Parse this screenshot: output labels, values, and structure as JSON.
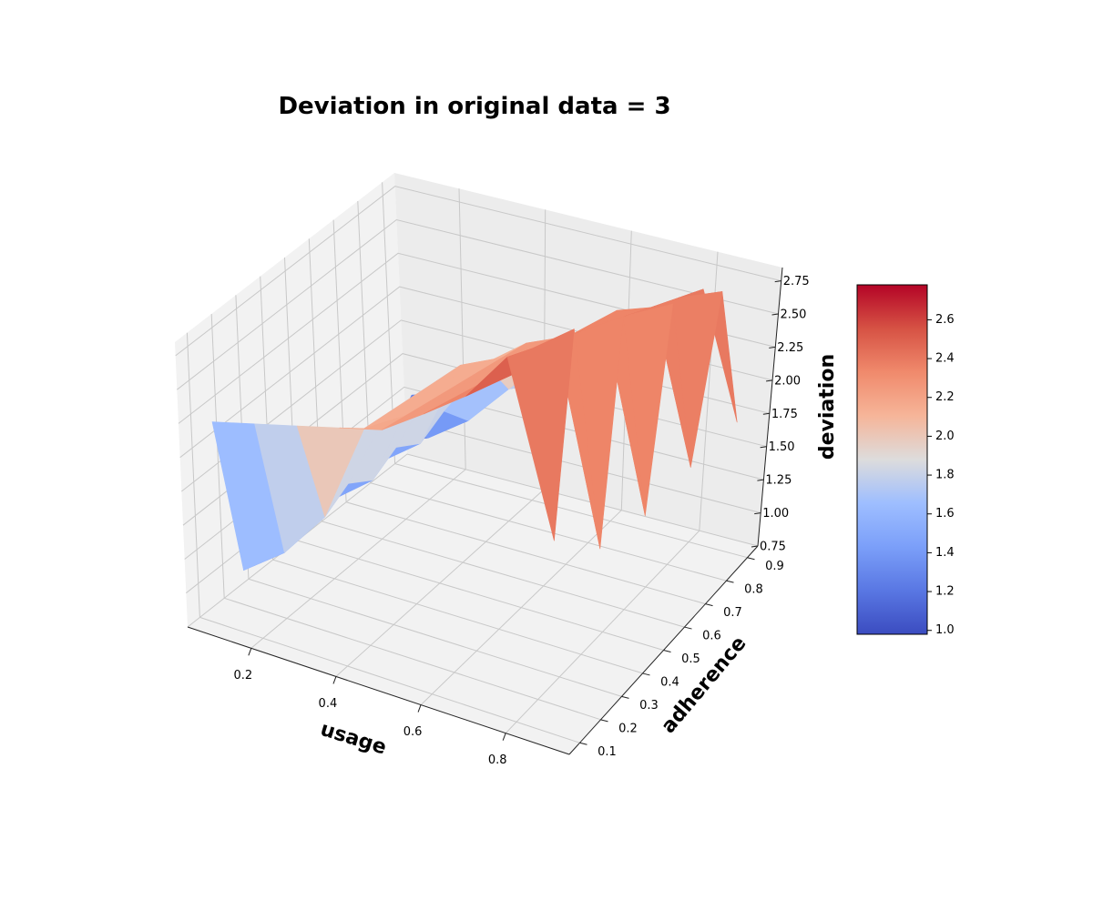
{
  "chart_data": {
    "type": "surface",
    "title": "Deviation in original data = 3",
    "xlabel": "usage",
    "ylabel": "adherence",
    "zlabel": "deviation",
    "xlim": [
      0.05,
      0.95
    ],
    "ylim": [
      0.05,
      0.95
    ],
    "zlim": [
      0.75,
      2.85
    ],
    "x_ticks": [
      "0.2",
      "0.4",
      "0.6",
      "0.8"
    ],
    "y_ticks": [
      "0.1",
      "0.2",
      "0.3",
      "0.4",
      "0.5",
      "0.6",
      "0.7",
      "0.8",
      "0.9"
    ],
    "z_ticks": [
      "0.75",
      "1.00",
      "1.25",
      "1.50",
      "1.75",
      "2.00",
      "2.25",
      "2.50",
      "2.75"
    ],
    "colormap": "coolwarm",
    "colorbar_range": [
      0.98,
      2.78
    ],
    "colorbar_ticks": [
      "1.0",
      "1.2",
      "1.4",
      "1.6",
      "1.8",
      "2.0",
      "2.2",
      "2.4",
      "2.6"
    ],
    "grid": true,
    "x": [
      0.1,
      0.2,
      0.3,
      0.4,
      0.5,
      0.6,
      0.7,
      0.8,
      0.9
    ],
    "y": [
      0.1,
      0.2,
      0.3,
      0.4,
      0.5,
      0.6,
      0.7,
      0.8,
      0.9
    ],
    "z": [
      [
        2.2,
        1.0,
        1.4,
        1.2,
        1.4,
        1.2,
        1.3,
        1.1,
        1.3
      ],
      [
        2.2,
        1.2,
        1.5,
        1.3,
        1.5,
        1.3,
        1.4,
        1.2,
        1.4
      ],
      [
        2.2,
        1.5,
        1.6,
        1.5,
        1.6,
        1.5,
        1.6,
        1.4,
        1.5
      ],
      [
        2.2,
        2.1,
        2.1,
        2.1,
        2.1,
        2.1,
        2.0,
        1.7,
        1.6
      ],
      [
        2.2,
        2.2,
        2.2,
        2.2,
        2.2,
        2.2,
        2.2,
        2.0,
        1.8
      ],
      [
        2.3,
        2.3,
        2.3,
        2.3,
        2.3,
        2.3,
        2.3,
        2.3,
        2.3
      ],
      [
        2.4,
        2.4,
        2.4,
        2.4,
        2.4,
        2.4,
        2.4,
        2.4,
        2.4
      ],
      [
        2.6,
        2.6,
        2.6,
        2.6,
        2.6,
        2.6,
        2.6,
        2.6,
        2.6
      ],
      [
        1.7,
        2.7,
        1.5,
        2.7,
        1.5,
        2.7,
        1.6,
        2.7,
        1.7
      ]
    ]
  }
}
